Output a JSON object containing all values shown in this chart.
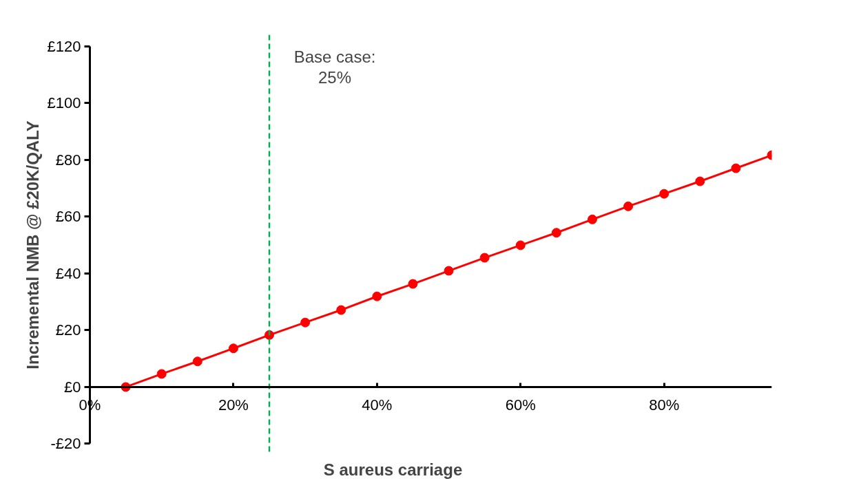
{
  "chart_data": {
    "type": "line",
    "xlabel": "S aureus carriage",
    "ylabel": "Incremental NMB @ £20K/QALY",
    "x": [
      5,
      10,
      15,
      20,
      25,
      30,
      35,
      40,
      45,
      50,
      55,
      60,
      65,
      70,
      75,
      80,
      85,
      90,
      95
    ],
    "series": [
      {
        "color": "#ff0000",
        "values": [
          0,
          4.6,
          9.0,
          13.6,
          18.3,
          22.7,
          27.1,
          31.9,
          36.3,
          40.9,
          45.5,
          49.9,
          54.3,
          59.0,
          63.6,
          68.0,
          72.4,
          77.0,
          81.6
        ]
      }
    ],
    "xlim": [
      0,
      95
    ],
    "ylim": [
      -20,
      120
    ],
    "xticks": [
      {
        "value": 0,
        "label": "0%"
      },
      {
        "value": 20,
        "label": "20%"
      },
      {
        "value": 40,
        "label": "40%"
      },
      {
        "value": 60,
        "label": "60%"
      },
      {
        "value": 80,
        "label": "80%"
      }
    ],
    "yticks": [
      {
        "value": -20,
        "label": "-£20"
      },
      {
        "value": 0,
        "label": "£0"
      },
      {
        "value": 20,
        "label": "£20"
      },
      {
        "value": 40,
        "label": "£40"
      },
      {
        "value": 60,
        "label": "£60"
      },
      {
        "value": 80,
        "label": "£80"
      },
      {
        "value": 100,
        "label": "£100"
      },
      {
        "value": 120,
        "label": "£120"
      }
    ],
    "ref_lines": [
      {
        "axis": "x",
        "value": 25,
        "label": "Base case:\n25%",
        "color": "#00b050",
        "line_style": "dashed"
      }
    ],
    "marker": "circle",
    "line_style": "solid",
    "grid": false
  }
}
